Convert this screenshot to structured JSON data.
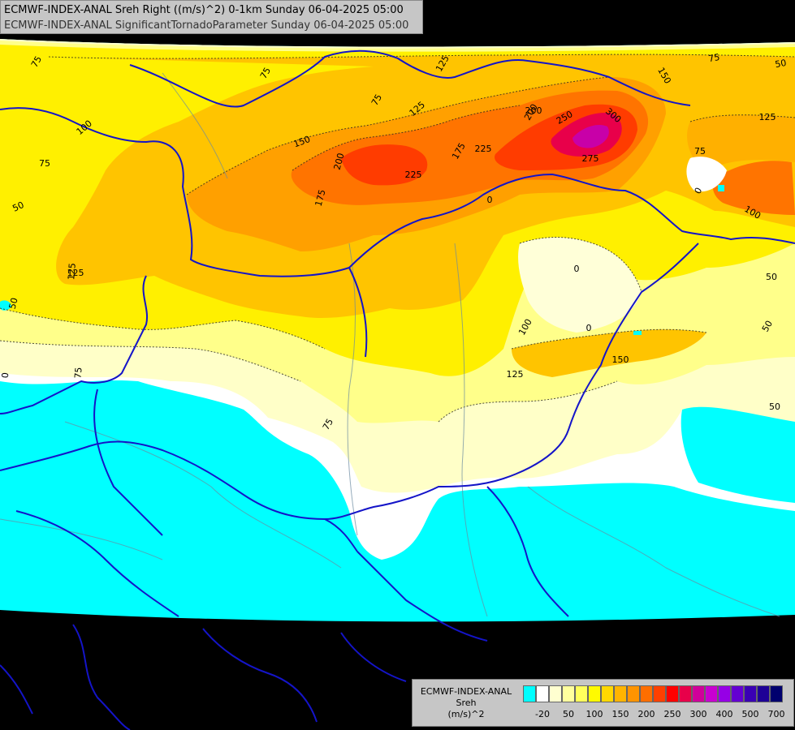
{
  "header": {
    "line1": "ECMWF-INDEX-ANAL Sreh Right ((m/s)^2) 0-1km Sunday 06-04-2025 05:00",
    "line2": "ECMWF-INDEX-ANAL SignificantTornadoParameter Sunday 06-04-2025 05:00"
  },
  "legend": {
    "title_model": "ECMWF-INDEX-ANAL",
    "title_param": "Sreh",
    "title_unit": "(m/s)^2",
    "colors": [
      "#00ffff",
      "#ffffff",
      "#ffffd0",
      "#ffff9e",
      "#ffff5c",
      "#fffa00",
      "#ffd800",
      "#ffb400",
      "#ff9400",
      "#ff6e00",
      "#ff4000",
      "#ff0000",
      "#e8004a",
      "#d0009a",
      "#c800d0",
      "#9600e6",
      "#6400d2",
      "#3a00b4",
      "#1e0096",
      "#00006e"
    ],
    "tick_labels": [
      "-20",
      "50",
      "100",
      "150",
      "200",
      "250",
      "300",
      "400",
      "500",
      "700"
    ]
  },
  "map_labels": [
    "75",
    "75",
    "125",
    "100",
    "150",
    "175",
    "200",
    "225",
    "200",
    "125",
    "75",
    "175",
    "75",
    "200",
    "250",
    "300",
    "275",
    "225",
    "150",
    "75",
    "50",
    "0",
    "125",
    "100",
    "50",
    "75",
    "125",
    "50",
    "0",
    "75",
    "0",
    "0",
    "100",
    "150",
    "125",
    "75",
    "50",
    "50",
    "0",
    "50",
    "50",
    "125"
  ],
  "icons": [
    "contour-map",
    "country-border-lines",
    "color-scale-legend"
  ]
}
